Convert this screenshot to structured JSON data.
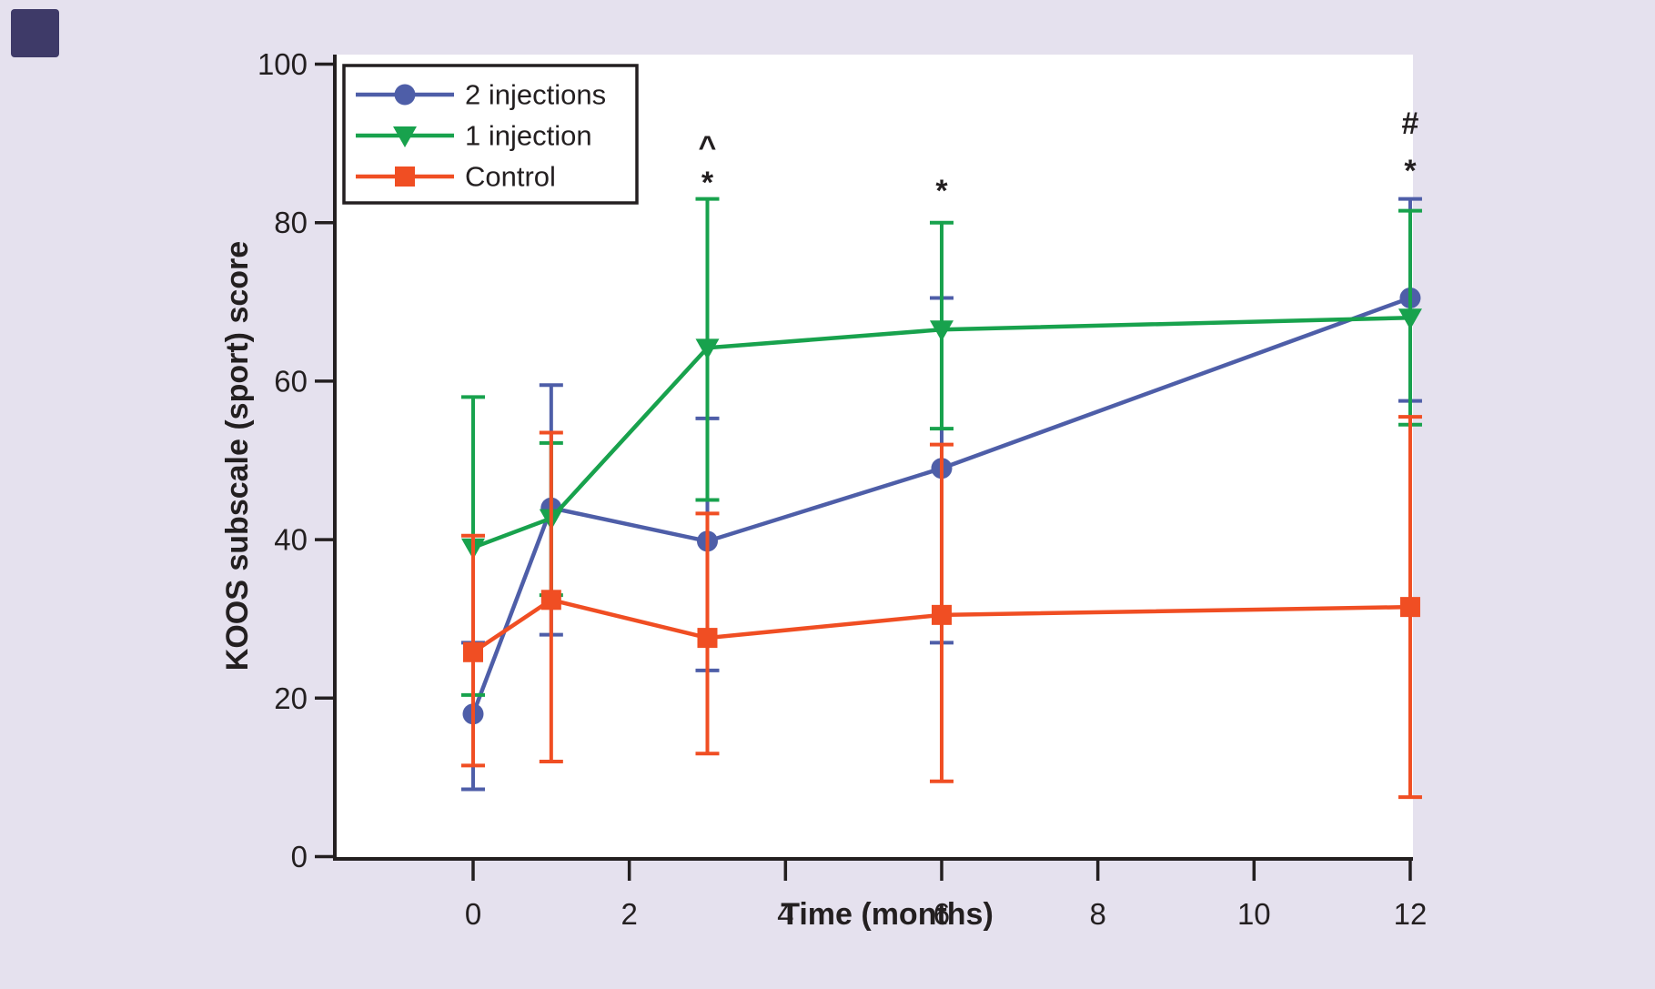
{
  "figure": {
    "background_color": "#e5e1ee",
    "plot_background_color": "#ffffff",
    "axis_color": "#231f20",
    "corner_mark_color": "#3e3a68"
  },
  "legend": {
    "items": [
      {
        "label": "2 injections",
        "marker": "circle-icon",
        "color": "#4e5ea8"
      },
      {
        "label": "1 injection",
        "marker": "triangle-down-icon",
        "color": "#18a24d"
      },
      {
        "label": "Control",
        "marker": "square-icon",
        "color": "#f04e23"
      }
    ]
  },
  "chart_data": {
    "type": "line",
    "title": "",
    "xlabel": "Time (months)",
    "ylabel": "KOOS subscale (sport) score",
    "xlim": [
      -1.8,
      12.05
    ],
    "ylim": [
      0,
      100
    ],
    "x_ticks": [
      0,
      2,
      4,
      6,
      8,
      10,
      12
    ],
    "y_ticks": [
      0,
      20,
      40,
      60,
      80,
      100
    ],
    "grid": false,
    "legend_position": "upper-left-inside",
    "error_bars": true,
    "x": [
      0,
      1,
      3,
      6,
      12
    ],
    "series": [
      {
        "name": "2 injections",
        "color": "#4e5ea8",
        "marker": "circle",
        "values": [
          18,
          44,
          39.8,
          49,
          70.5
        ],
        "err_low": [
          8.5,
          28,
          23.5,
          27,
          57.5
        ],
        "err_high": [
          27,
          59.5,
          55.3,
          70.5,
          83
        ]
      },
      {
        "name": "1 injection",
        "color": "#18a24d",
        "marker": "triangle-down",
        "values": [
          39,
          42.7,
          64.2,
          66.5,
          68
        ],
        "err_low": [
          20.4,
          33,
          45,
          54,
          54.5
        ],
        "err_high": [
          58,
          52.2,
          83,
          80,
          81.5
        ]
      },
      {
        "name": "Control",
        "color": "#f04e23",
        "marker": "square",
        "values": [
          25.8,
          32.4,
          27.6,
          30.5,
          31.5
        ],
        "err_low": [
          11.5,
          12,
          13,
          9.5,
          7.5
        ],
        "err_high": [
          40.5,
          53.5,
          43.3,
          52,
          55.5
        ]
      }
    ],
    "annotations": [
      {
        "text": "^",
        "month": 3,
        "value": 89.5
      },
      {
        "text": "*",
        "month": 3,
        "value": 85
      },
      {
        "text": "*",
        "month": 6,
        "value": 84
      },
      {
        "text": "#",
        "month": 12,
        "value": 92.5
      },
      {
        "text": "*",
        "month": 12,
        "value": 86.5
      }
    ]
  }
}
